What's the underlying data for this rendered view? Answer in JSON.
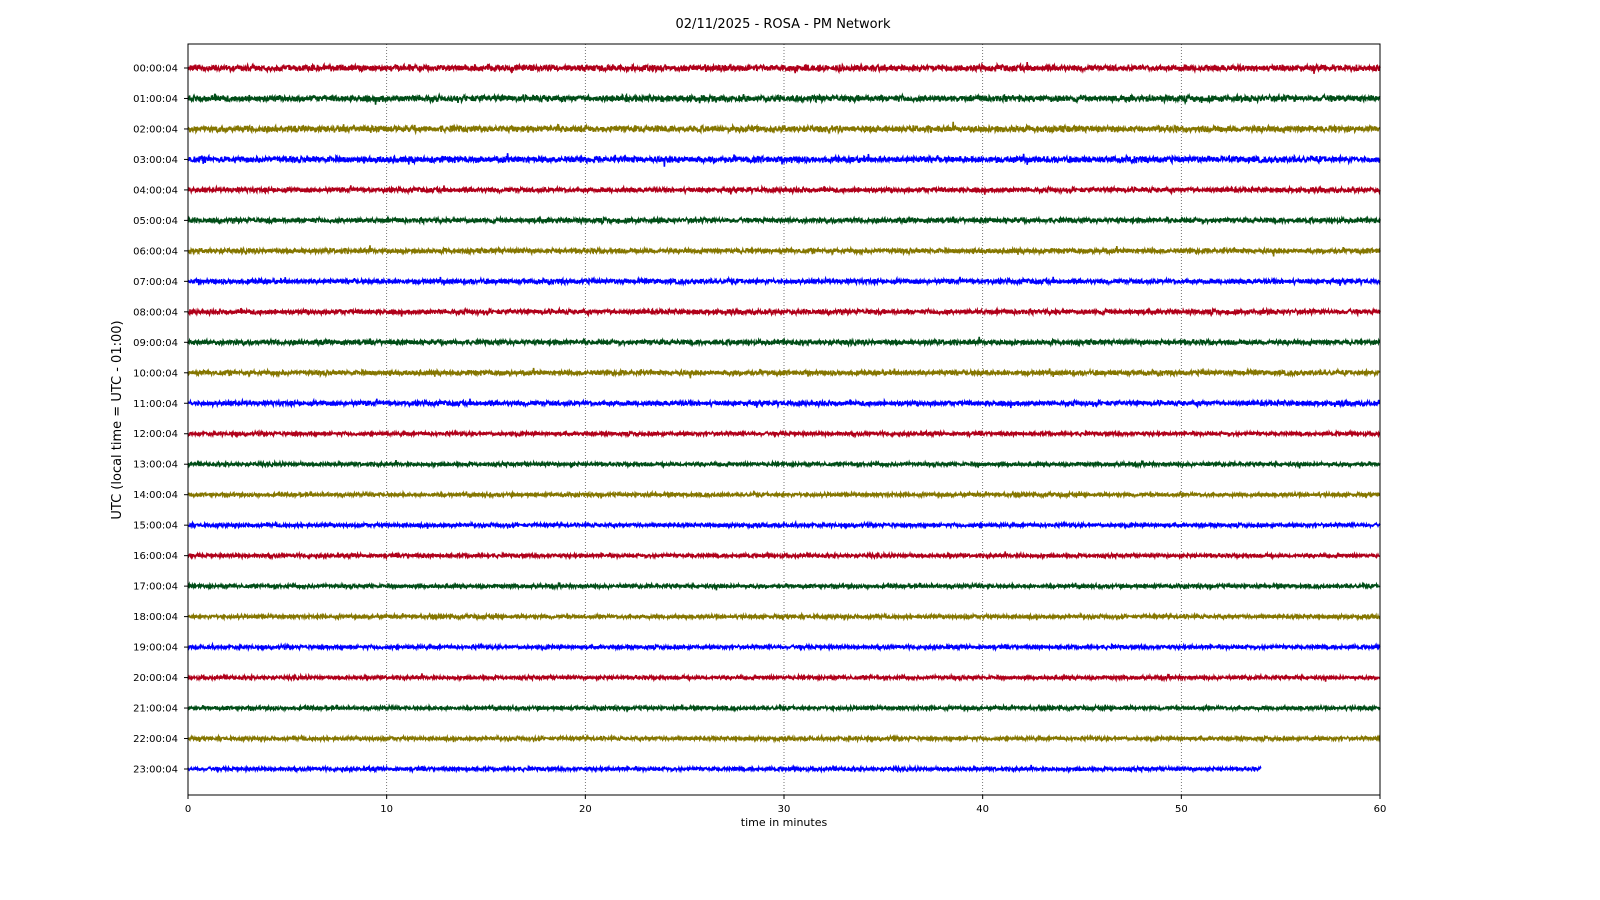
{
  "chart_data": {
    "type": "line",
    "title": "02/11/2025 - ROSA - PM Network",
    "xlabel": "time in minutes",
    "ylabel": "UTC (local time = UTC - 01:00)",
    "xlim": [
      0,
      60
    ],
    "x_ticks": [
      "0",
      "10",
      "20",
      "30",
      "40",
      "50",
      "60"
    ],
    "grid": "vertical dotted at major x ticks",
    "row_labels": [
      "00:00:04",
      "01:00:04",
      "02:00:04",
      "03:00:04",
      "04:00:04",
      "05:00:04",
      "06:00:04",
      "07:00:04",
      "08:00:04",
      "09:00:04",
      "10:00:04",
      "11:00:04",
      "12:00:04",
      "13:00:04",
      "14:00:04",
      "15:00:04",
      "16:00:04",
      "17:00:04",
      "18:00:04",
      "19:00:04",
      "20:00:04",
      "21:00:04",
      "22:00:04",
      "23:00:04"
    ],
    "color_cycle": [
      "#b0001a",
      "#004d17",
      "#857600",
      "#0000ff"
    ],
    "trace_end_minutes": [
      60,
      60,
      60,
      60,
      60,
      60,
      60,
      60,
      60,
      60,
      60,
      60,
      60,
      60,
      60,
      60,
      60,
      60,
      60,
      60,
      60,
      60,
      60,
      54
    ]
  }
}
